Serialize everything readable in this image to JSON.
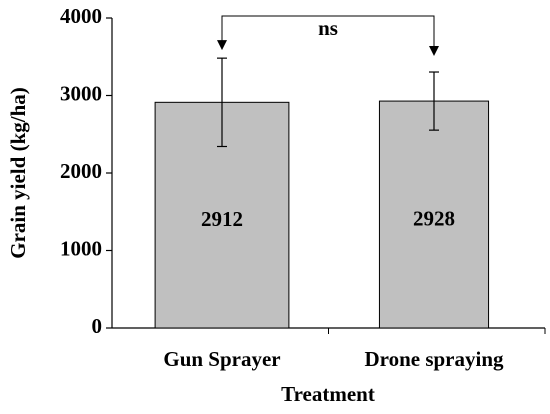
{
  "chart_data": {
    "type": "bar",
    "xlabel": "Treatment",
    "ylabel": "Grain yield (kg/ha)",
    "categories": [
      "Gun Sprayer",
      "Drone spraying"
    ],
    "values": [
      2912,
      2928
    ],
    "errors": [
      570,
      375
    ],
    "color": "#c0c0c0",
    "ylim": [
      0,
      4000
    ],
    "yticks": [
      0,
      1000,
      2000,
      3000,
      4000
    ],
    "annotation": "ns"
  }
}
